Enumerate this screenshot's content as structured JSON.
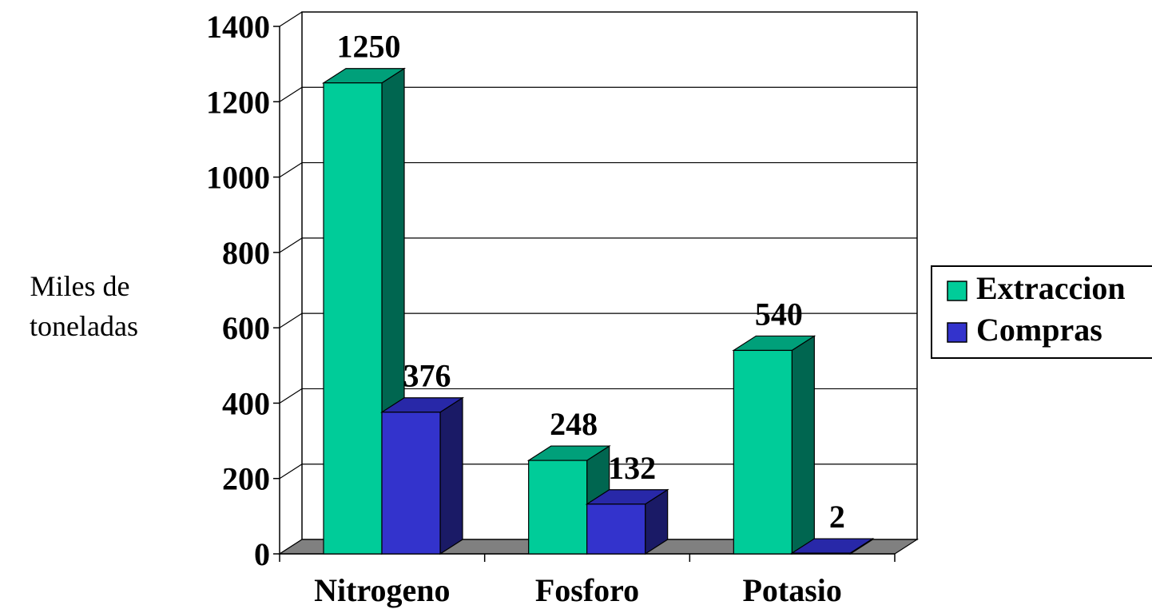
{
  "chart_data": {
    "type": "bar",
    "categories": [
      "Nitrogeno",
      "Fosforo",
      "Potasio"
    ],
    "series": [
      {
        "name": "Extraccion",
        "values": [
          1250,
          248,
          540
        ],
        "color": "#00cc99",
        "side_color": "#006650",
        "top_color": "#00a07a"
      },
      {
        "name": "Compras",
        "values": [
          376,
          132,
          2
        ],
        "color": "#3333cc",
        "side_color": "#1a1a66",
        "top_color": "#2828a8"
      }
    ],
    "ylabel_lines": [
      "Miles de",
      "toneladas"
    ],
    "ylim": [
      0,
      1400
    ],
    "yticks": [
      0,
      200,
      400,
      600,
      800,
      1000,
      1200,
      1400
    ],
    "grid": true,
    "legend_position": "right",
    "floor_color": "#808080"
  }
}
